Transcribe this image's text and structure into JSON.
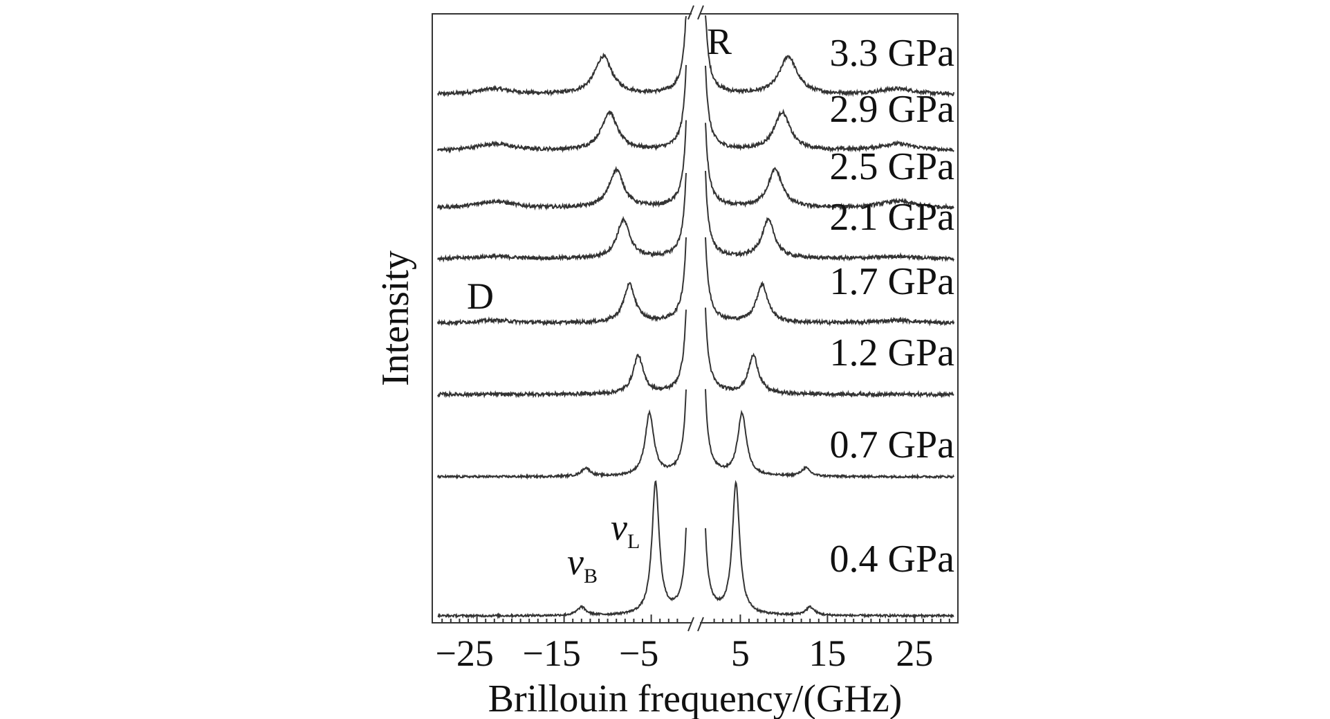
{
  "chart_data": {
    "type": "line",
    "xlabel": "Brillouin frequency/(GHz)",
    "ylabel": "Intensity",
    "xlim": [
      -30,
      30
    ],
    "axis_break": [
      -1,
      1
    ],
    "xticks": [
      -25,
      -15,
      -5,
      5,
      15,
      25
    ],
    "xtick_labels": [
      "−25",
      "−15",
      "−5",
      "5",
      "15",
      "25"
    ],
    "annotations": {
      "rayleigh": "R",
      "d_peak": "D",
      "nu_l": "ν",
      "nu_l_sub": "L",
      "nu_b": "ν",
      "nu_b_sub": "B"
    },
    "line_color": "#333333",
    "grid": false,
    "series": [
      {
        "name": "3.3 GPa",
        "nu_L": 10.5,
        "d_peak": 23,
        "d_amp": 0.25,
        "nu_B": 0
      },
      {
        "name": "2.9 GPa",
        "nu_L": 9.8,
        "d_peak": 23,
        "d_amp": 0.3,
        "nu_B": 0
      },
      {
        "name": "2.5 GPa",
        "nu_L": 9.0,
        "d_peak": 23,
        "d_amp": 0.3,
        "nu_B": 0
      },
      {
        "name": "2.1 GPa",
        "nu_L": 8.2,
        "d_peak": 23,
        "d_amp": 0.1,
        "nu_B": 0
      },
      {
        "name": "1.7 GPa",
        "nu_L": 7.5,
        "d_peak": 23,
        "d_amp": 0.12,
        "nu_B": 0
      },
      {
        "name": "1.2 GPa",
        "nu_L": 6.5,
        "d_peak": 23,
        "d_amp": 0.0,
        "nu_B": 0
      },
      {
        "name": "0.7 GPa",
        "nu_L": 5.2,
        "d_peak": 23,
        "d_amp": 0.0,
        "nu_B": 12.5
      },
      {
        "name": "0.4 GPa",
        "nu_L": 4.5,
        "d_peak": 23,
        "d_amp": 0.0,
        "nu_B": 13
      }
    ]
  }
}
